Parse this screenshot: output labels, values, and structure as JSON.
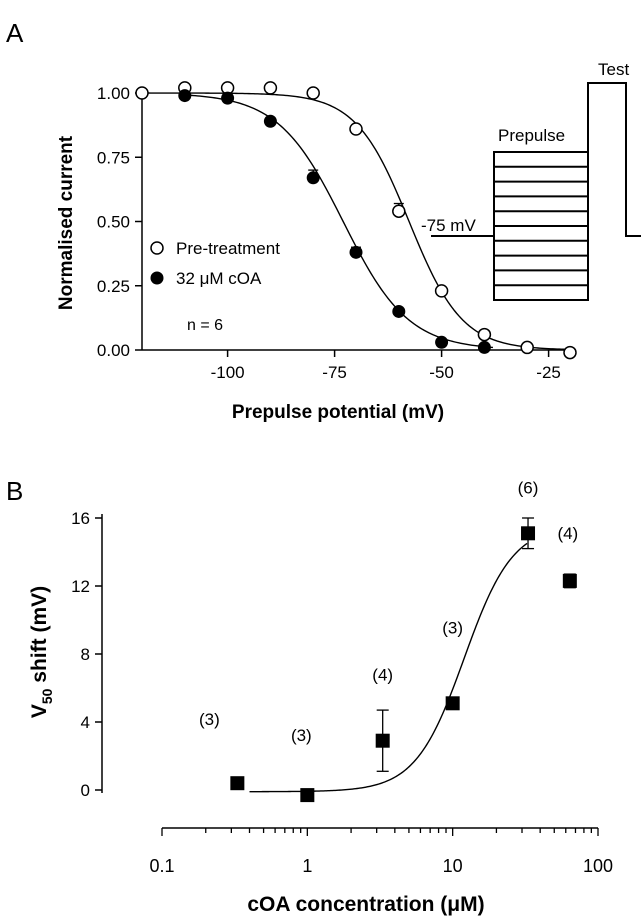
{
  "figure": {
    "panel_a_label": "A",
    "panel_b_label": "B"
  },
  "colors": {
    "ink": "#000000",
    "background": "#ffffff"
  },
  "chart_data": [
    {
      "type": "scatter",
      "panel": "A",
      "xlabel": "Prepulse potential (mV)",
      "ylabel": "Normalised current",
      "xlim": [
        -120,
        -18
      ],
      "ylim": [
        0,
        1.05
      ],
      "xticks": [
        -100,
        -75,
        -50,
        -25
      ],
      "xtick_labels": [
        "-100",
        "-75",
        "-50",
        "-25"
      ],
      "yticks": [
        0,
        0.25,
        0.5,
        0.75,
        1.0
      ],
      "ytick_labels": [
        "0.00",
        "0.25",
        "0.50",
        "0.75",
        "1.00"
      ],
      "legend_position": "left, lower-middle",
      "n_label": "n = 6",
      "series": [
        {
          "name": "Pre-treatment",
          "marker": "open-circle",
          "x": [
            -120,
            -110,
            -100,
            -90,
            -80,
            -70,
            -60,
            -50,
            -40,
            -30,
            -20
          ],
          "y": [
            1.0,
            1.02,
            1.02,
            1.02,
            1.0,
            0.86,
            0.54,
            0.23,
            0.06,
            0.01,
            -0.01
          ],
          "err": [
            0,
            0,
            0,
            0,
            0,
            0.01,
            0.03,
            0.01,
            0,
            0,
            0
          ],
          "fit": {
            "v50": -57.6,
            "k": 6.2
          }
        },
        {
          "name": "32 μM cOA",
          "marker": "filled-circle",
          "x": [
            -110,
            -100,
            -90,
            -80,
            -70,
            -60,
            -50,
            -40
          ],
          "y": [
            0.99,
            0.98,
            0.89,
            0.67,
            0.38,
            0.15,
            0.03,
            0.01
          ],
          "err": [
            0,
            0,
            0,
            0.03,
            0.02,
            0.01,
            0,
            0
          ],
          "fit": {
            "v50": -73.0,
            "k": 7.6
          }
        }
      ],
      "inset": {
        "type": "voltage-protocol",
        "test_label": "Test",
        "prepulse_label": "Prepulse",
        "holding_label": "-75 mV",
        "step_count": 10
      }
    },
    {
      "type": "scatter",
      "panel": "B",
      "xlabel": "cOA concentration (μM)",
      "ylabel": "V50 shift (mV)",
      "ylabel_main": "V",
      "ylabel_sub": "50",
      "ylabel_rest": " shift (mV)",
      "xscale": "log",
      "xlim": [
        0.1,
        100
      ],
      "ylim": [
        -0.8,
        16.5
      ],
      "xticks": [
        0.1,
        1,
        10,
        100
      ],
      "xtick_labels": [
        "0.1",
        "1",
        "10",
        "100"
      ],
      "yticks": [
        0,
        4,
        8,
        12,
        16
      ],
      "ytick_labels": [
        "0",
        "4",
        "8",
        "12",
        "16"
      ],
      "points": {
        "x": [
          0.33,
          1,
          3.3,
          10,
          33,
          64
        ],
        "y": [
          0.4,
          -0.3,
          2.9,
          5.1,
          15.1,
          12.3
        ],
        "err": [
          0,
          0,
          1.8,
          0,
          0.9,
          0.4
        ],
        "n_labels": [
          "(3)",
          "(3)",
          "(4)",
          "(3)",
          "(6)",
          "(4)"
        ]
      },
      "fit": {
        "bottom": -0.1,
        "top": 15.6,
        "ec50": 12,
        "hill": 2.6,
        "x_start": 0.4,
        "x_end": 33
      }
    }
  ]
}
